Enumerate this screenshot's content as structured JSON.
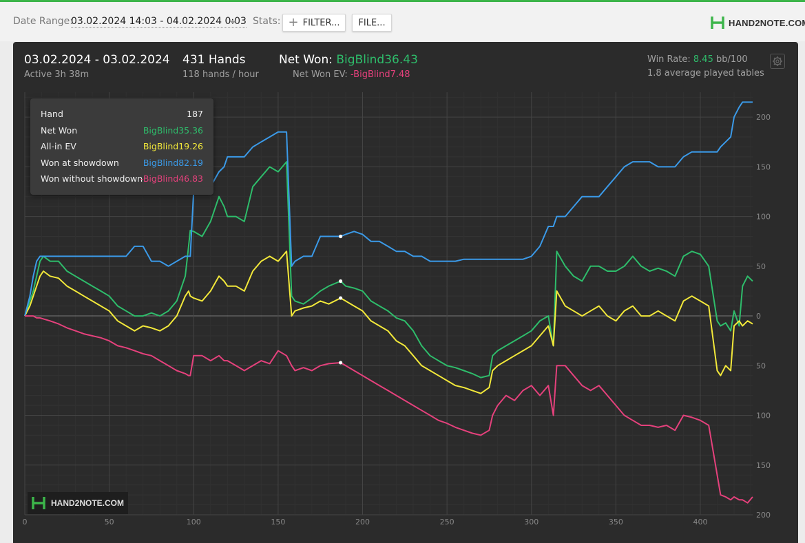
{
  "toolbar": {
    "date_range_label": "Date Range:",
    "date_range_value": "03.02.2024 14:03 - 04.02.2024 0:03",
    "stats_label": "Stats:",
    "filter_button": "FILTER...",
    "file_button": "FILE...",
    "logo_text": "HAND2NOTE.COM"
  },
  "summary": {
    "period": "03.02.2024 - 03.02.2024",
    "active": "Active 3h 38m",
    "hands": "431 Hands",
    "hands_per_hour": "118 hands / hour",
    "net_won_label": "Net Won:",
    "net_won_value": "BigBlind36.43",
    "net_won_ev_label": "Net Won  EV:",
    "net_won_ev_value": "-BigBlind7.48",
    "win_rate_label": "Win Rate:",
    "win_rate_value": "8.45",
    "win_rate_unit": "bb/100",
    "avg_tables": "1.8 average played tables"
  },
  "tooltip": {
    "rows": [
      {
        "label": "Hand",
        "value": "187",
        "color": "#eeeeee"
      },
      {
        "label": "Net Won",
        "value": "BigBlind35.36",
        "color": "#2ebd6b"
      },
      {
        "label": "All-in EV",
        "value": "BigBlind19.26",
        "color": "#f2e83a"
      },
      {
        "label": "Won at showdown",
        "value": "BigBlind82.19",
        "color": "#3b9ae8"
      },
      {
        "label": "Won without showdown",
        "value": "-BigBlind46.83",
        "color": "#e5417c"
      }
    ]
  },
  "watermark": "HAND2NOTE.COM",
  "colors": {
    "net_won": "#2ebd6b",
    "all_in_ev": "#f2e83a",
    "won_at_showdown": "#3b9ae8",
    "won_without_showdown": "#e5417c",
    "accent": "#3cb54a"
  },
  "chart_data": {
    "type": "line",
    "xlim": [
      0,
      431
    ],
    "ylim": [
      -200,
      225
    ],
    "x_ticks": [
      0,
      50,
      100,
      150,
      200,
      250,
      300,
      350,
      400
    ],
    "y_ticks": [
      200,
      150,
      100,
      50,
      0,
      -50,
      -100,
      -150,
      -200
    ],
    "y_tick_labels": [
      "200",
      "150",
      "100",
      "50",
      "0",
      "50",
      "100",
      "150",
      "200"
    ],
    "grid": true,
    "highlight_x": 187,
    "series": [
      {
        "name": "Net Won",
        "color": "#2ebd6b",
        "x": [
          0,
          3,
          5,
          7,
          9,
          11,
          15,
          20,
          25,
          30,
          35,
          40,
          45,
          50,
          55,
          60,
          65,
          70,
          75,
          80,
          85,
          90,
          95,
          97,
          98,
          100,
          105,
          110,
          115,
          118,
          120,
          125,
          130,
          135,
          140,
          145,
          150,
          155,
          158,
          160,
          165,
          170,
          175,
          180,
          187,
          190,
          195,
          200,
          205,
          210,
          215,
          220,
          225,
          230,
          235,
          240,
          245,
          250,
          255,
          260,
          265,
          270,
          275,
          277,
          280,
          285,
          290,
          295,
          300,
          305,
          310,
          313,
          315,
          320,
          325,
          330,
          335,
          340,
          345,
          350,
          355,
          360,
          365,
          370,
          375,
          380,
          385,
          390,
          395,
          400,
          405,
          410,
          412,
          415,
          418,
          420,
          423,
          425,
          428,
          431
        ],
        "y": [
          0,
          15,
          25,
          40,
          55,
          60,
          55,
          55,
          45,
          40,
          35,
          30,
          25,
          20,
          10,
          5,
          0,
          0,
          3,
          0,
          5,
          15,
          40,
          70,
          86,
          85,
          80,
          95,
          120,
          110,
          100,
          100,
          95,
          130,
          140,
          150,
          145,
          155,
          20,
          15,
          12,
          18,
          25,
          30,
          35,
          30,
          28,
          25,
          15,
          10,
          5,
          -2,
          -5,
          -15,
          -30,
          -40,
          -45,
          -50,
          -52,
          -55,
          -58,
          -62,
          -60,
          -40,
          -35,
          -30,
          -25,
          -20,
          -15,
          -5,
          0,
          -30,
          65,
          50,
          40,
          35,
          50,
          50,
          45,
          45,
          50,
          60,
          50,
          45,
          48,
          45,
          40,
          60,
          65,
          62,
          50,
          -5,
          -10,
          -7,
          -15,
          5,
          -10,
          30,
          40,
          35
        ]
      },
      {
        "name": "All-in EV",
        "color": "#f2e83a",
        "x": [
          0,
          3,
          5,
          7,
          9,
          11,
          15,
          20,
          25,
          30,
          35,
          40,
          45,
          50,
          55,
          60,
          65,
          70,
          75,
          80,
          85,
          90,
          95,
          97,
          98,
          100,
          105,
          110,
          115,
          118,
          120,
          125,
          130,
          135,
          140,
          145,
          150,
          155,
          158,
          160,
          165,
          170,
          175,
          180,
          187,
          190,
          195,
          200,
          205,
          210,
          215,
          220,
          225,
          230,
          235,
          240,
          245,
          250,
          255,
          260,
          265,
          270,
          275,
          277,
          280,
          285,
          290,
          295,
          300,
          305,
          310,
          313,
          315,
          320,
          325,
          330,
          335,
          340,
          345,
          350,
          355,
          360,
          365,
          370,
          375,
          380,
          385,
          390,
          395,
          400,
          405,
          410,
          412,
          415,
          418,
          420,
          423,
          425,
          428,
          431
        ],
        "y": [
          0,
          10,
          20,
          30,
          40,
          45,
          40,
          38,
          30,
          25,
          20,
          15,
          10,
          5,
          -5,
          -10,
          -15,
          -10,
          -12,
          -15,
          -10,
          0,
          20,
          25,
          20,
          18,
          15,
          25,
          40,
          35,
          30,
          30,
          25,
          45,
          55,
          60,
          55,
          65,
          0,
          5,
          8,
          10,
          15,
          12,
          18,
          15,
          10,
          5,
          -5,
          -10,
          -15,
          -25,
          -30,
          -40,
          -50,
          -55,
          -60,
          -65,
          -70,
          -72,
          -75,
          -78,
          -72,
          -55,
          -50,
          -45,
          -40,
          -35,
          -30,
          -20,
          -10,
          -30,
          25,
          10,
          5,
          0,
          5,
          10,
          0,
          -5,
          5,
          10,
          0,
          0,
          5,
          0,
          -5,
          15,
          20,
          15,
          10,
          -55,
          -60,
          -50,
          -55,
          -10,
          -5,
          -10,
          -5,
          -8
        ]
      },
      {
        "name": "Won at showdown",
        "color": "#3b9ae8",
        "x": [
          0,
          3,
          5,
          7,
          9,
          11,
          15,
          20,
          25,
          30,
          35,
          40,
          45,
          50,
          55,
          60,
          65,
          70,
          75,
          80,
          85,
          90,
          95,
          97,
          98,
          100,
          105,
          110,
          115,
          118,
          120,
          125,
          130,
          135,
          140,
          145,
          150,
          155,
          158,
          160,
          165,
          170,
          175,
          180,
          187,
          190,
          195,
          200,
          205,
          210,
          215,
          220,
          225,
          230,
          235,
          240,
          245,
          250,
          255,
          260,
          265,
          270,
          275,
          277,
          280,
          285,
          290,
          295,
          300,
          305,
          310,
          313,
          315,
          320,
          325,
          330,
          335,
          340,
          345,
          350,
          355,
          360,
          365,
          370,
          375,
          380,
          385,
          390,
          395,
          400,
          405,
          410,
          412,
          415,
          418,
          420,
          423,
          425,
          428,
          431
        ],
        "y": [
          0,
          20,
          40,
          55,
          60,
          60,
          60,
          60,
          60,
          60,
          60,
          60,
          60,
          60,
          60,
          60,
          70,
          70,
          55,
          55,
          50,
          55,
          60,
          60,
          60,
          125,
          125,
          130,
          145,
          150,
          160,
          160,
          160,
          170,
          175,
          180,
          185,
          185,
          50,
          55,
          60,
          60,
          80,
          80,
          80,
          82,
          85,
          82,
          75,
          75,
          70,
          65,
          65,
          60,
          60,
          55,
          55,
          55,
          55,
          57,
          57,
          57,
          57,
          57,
          57,
          57,
          57,
          57,
          60,
          70,
          90,
          90,
          100,
          100,
          110,
          120,
          120,
          120,
          130,
          140,
          150,
          155,
          155,
          155,
          150,
          150,
          150,
          160,
          165,
          165,
          165,
          165,
          170,
          175,
          180,
          200,
          210,
          215,
          215,
          215
        ]
      },
      {
        "name": "Won without showdown",
        "color": "#e5417c",
        "x": [
          0,
          3,
          5,
          7,
          9,
          11,
          15,
          20,
          25,
          30,
          35,
          40,
          45,
          50,
          55,
          60,
          65,
          70,
          75,
          80,
          85,
          90,
          95,
          97,
          98,
          100,
          105,
          110,
          115,
          118,
          120,
          125,
          130,
          135,
          140,
          145,
          150,
          155,
          158,
          160,
          165,
          170,
          175,
          180,
          187,
          190,
          195,
          200,
          205,
          210,
          215,
          220,
          225,
          230,
          235,
          240,
          245,
          250,
          255,
          260,
          265,
          270,
          275,
          277,
          280,
          285,
          290,
          295,
          300,
          305,
          310,
          313,
          315,
          320,
          325,
          330,
          335,
          340,
          345,
          350,
          355,
          360,
          365,
          370,
          375,
          380,
          385,
          390,
          395,
          400,
          405,
          410,
          412,
          415,
          418,
          420,
          423,
          425,
          428,
          431
        ],
        "y": [
          0,
          0,
          0,
          -2,
          -2,
          -3,
          -5,
          -8,
          -12,
          -15,
          -18,
          -20,
          -22,
          -25,
          -30,
          -32,
          -35,
          -38,
          -40,
          -45,
          -50,
          -55,
          -58,
          -60,
          -60,
          -40,
          -40,
          -45,
          -40,
          -45,
          -45,
          -50,
          -55,
          -50,
          -45,
          -48,
          -35,
          -40,
          -50,
          -55,
          -52,
          -55,
          -50,
          -48,
          -47,
          -50,
          -55,
          -60,
          -65,
          -70,
          -75,
          -80,
          -85,
          -90,
          -95,
          -100,
          -105,
          -108,
          -112,
          -115,
          -118,
          -120,
          -115,
          -100,
          -90,
          -80,
          -85,
          -75,
          -70,
          -80,
          -70,
          -100,
          -50,
          -50,
          -60,
          -70,
          -75,
          -70,
          -80,
          -90,
          -100,
          -105,
          -110,
          -110,
          -112,
          -110,
          -115,
          -100,
          -102,
          -105,
          -110,
          -160,
          -180,
          -182,
          -185,
          -182,
          -185,
          -185,
          -188,
          -182
        ]
      }
    ]
  }
}
